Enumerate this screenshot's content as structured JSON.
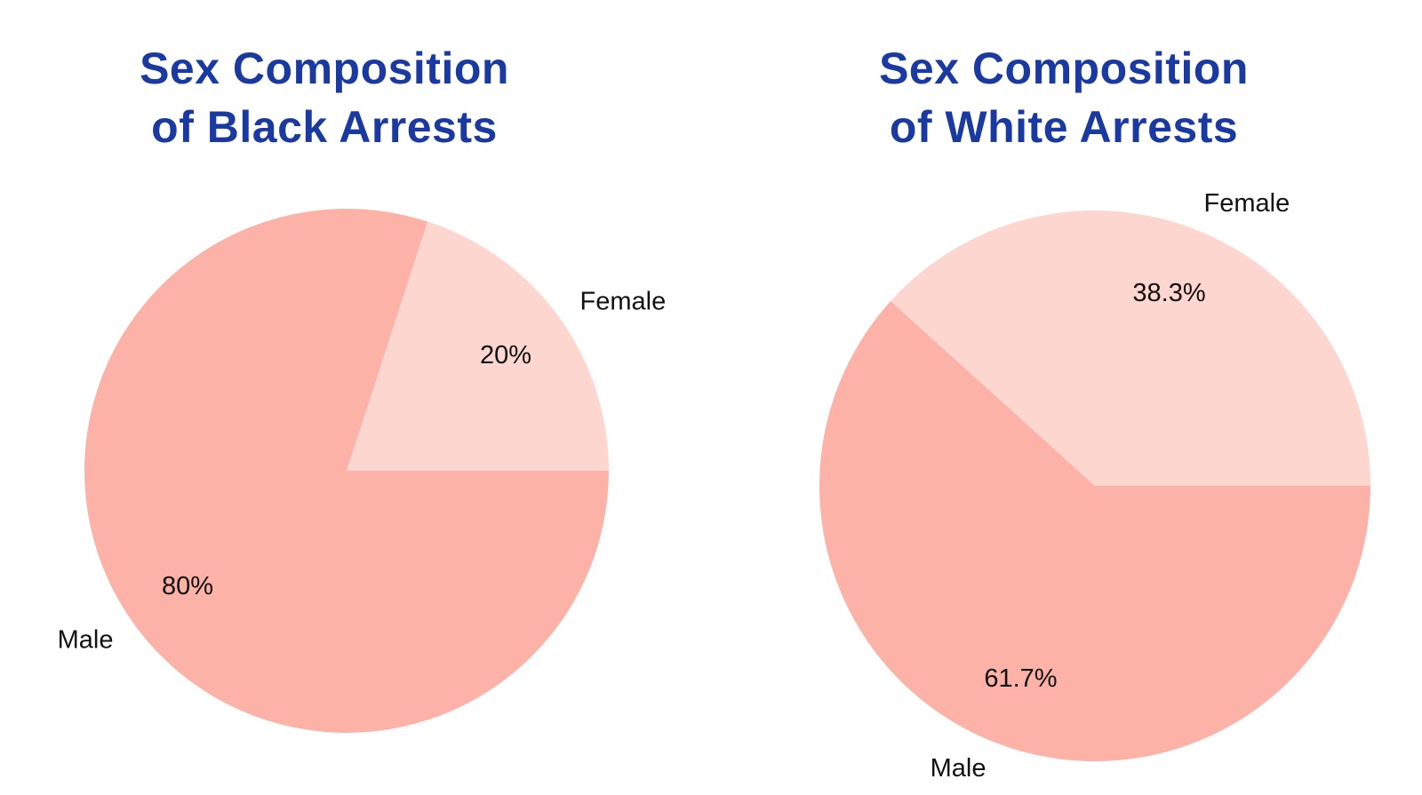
{
  "page": {
    "background_color": "#FFFFFF"
  },
  "styles": {
    "title_color": "#1A3AA2",
    "label_text_color": "#111111",
    "male_slice_color": "#FCB2A6",
    "female_slice_color": "#FDD6CF"
  },
  "charts": [
    {
      "name": "black-arrests",
      "title_line1": "Sex Composition",
      "title_line2": "of Black Arrests",
      "chart_data": {
        "type": "pie",
        "categories": [
          "Female",
          "Male"
        ],
        "values": [
          20,
          80
        ],
        "value_labels": [
          "20%",
          "80%"
        ],
        "slice_colors": [
          "#FDD6CF",
          "#FCB2A6"
        ],
        "start_angle_deg": 0,
        "direction": "counterclockwise",
        "category_label_position": "outside",
        "value_label_position": "inside",
        "legend": "none"
      }
    },
    {
      "name": "white-arrests",
      "title_line1": "Sex Composition",
      "title_line2": "of White Arrests",
      "chart_data": {
        "type": "pie",
        "categories": [
          "Female",
          "Male"
        ],
        "values": [
          38.3,
          61.7
        ],
        "value_labels": [
          "38.3%",
          "61.7%"
        ],
        "slice_colors": [
          "#FDD6CF",
          "#FCB2A6"
        ],
        "start_angle_deg": 0,
        "direction": "counterclockwise",
        "category_label_position": "outside",
        "value_label_position": "inside",
        "legend": "none"
      }
    }
  ]
}
